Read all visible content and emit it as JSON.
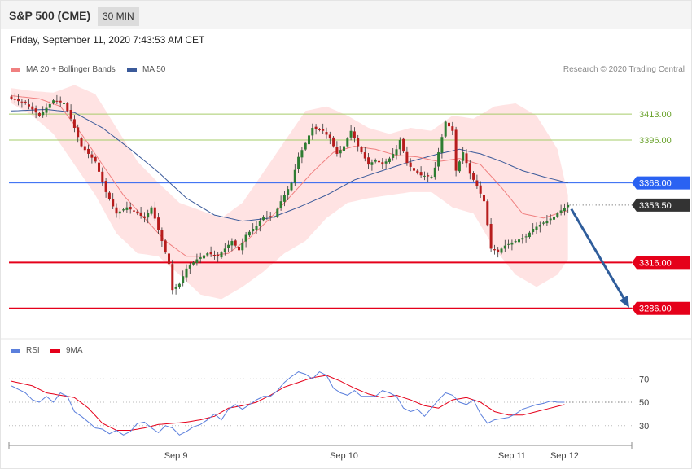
{
  "header": {
    "title": "S&P 500 (CME)",
    "timeframe": "30 MIN",
    "timestamp": "Friday, September 11, 2020 7:43:53 AM CET"
  },
  "legend": {
    "ma20": "MA 20 + Bollinger Bands",
    "ma50": "MA 50",
    "credit": "Research © 2020 Trading Central"
  },
  "rsi_legend": {
    "rsi": "RSI",
    "ma9": "9MA"
  },
  "colors": {
    "up": "#2e7d32",
    "down": "#b71c1c",
    "band": "#ffe3e3",
    "ma20": "#f08080",
    "ma50": "#3b5a9a",
    "resistance": "#a6cc6a",
    "level_blue": "#2a62f2",
    "support": "#e5001a",
    "arrow": "#2f5d9b",
    "rsi": "#5b7fdc",
    "rsi_ma": "#e5001a"
  },
  "chart_data": [
    {
      "type": "candlestick",
      "ylim": [
        3272,
        3437
      ],
      "x_ticks": [
        {
          "label": "Sep 9",
          "index": 47
        },
        {
          "label": "Sep 10",
          "index": 95
        },
        {
          "label": "Sep 11",
          "index": 143
        },
        {
          "label": "Sep 12",
          "index": 158
        }
      ],
      "levels": [
        {
          "value": 3413.0,
          "label": "3413.00",
          "style": "resistance"
        },
        {
          "value": 3396.0,
          "label": "3396.00",
          "style": "resistance"
        },
        {
          "value": 3368.0,
          "label": "3368.00",
          "style": "level_blue"
        },
        {
          "value": 3353.5,
          "label": "3353.50",
          "style": "current"
        },
        {
          "value": 3316.0,
          "label": "3316.00",
          "style": "support"
        },
        {
          "value": 3286.0,
          "label": "3286.00",
          "style": "support"
        }
      ],
      "close_anchors": [
        [
          0,
          3423
        ],
        [
          4,
          3420
        ],
        [
          8,
          3412
        ],
        [
          12,
          3422
        ],
        [
          15,
          3420
        ],
        [
          17,
          3410
        ],
        [
          20,
          3392
        ],
        [
          24,
          3382
        ],
        [
          27,
          3362
        ],
        [
          30,
          3348
        ],
        [
          33,
          3352
        ],
        [
          36,
          3348
        ],
        [
          38,
          3345
        ],
        [
          40,
          3352
        ],
        [
          43,
          3330
        ],
        [
          45,
          3315
        ],
        [
          46,
          3298
        ],
        [
          48,
          3302
        ],
        [
          50,
          3312
        ],
        [
          53,
          3318
        ],
        [
          56,
          3322
        ],
        [
          59,
          3320
        ],
        [
          61,
          3325
        ],
        [
          63,
          3330
        ],
        [
          65,
          3324
        ],
        [
          67,
          3334
        ],
        [
          70,
          3340
        ],
        [
          72,
          3346
        ],
        [
          75,
          3346
        ],
        [
          77,
          3356
        ],
        [
          80,
          3368
        ],
        [
          82,
          3385
        ],
        [
          84,
          3394
        ],
        [
          86,
          3404
        ],
        [
          89,
          3402
        ],
        [
          91,
          3397
        ],
        [
          93,
          3387
        ],
        [
          95,
          3392
        ],
        [
          97,
          3402
        ],
        [
          99,
          3392
        ],
        [
          102,
          3380
        ],
        [
          104,
          3383
        ],
        [
          106,
          3380
        ],
        [
          108,
          3384
        ],
        [
          110,
          3390
        ],
        [
          111,
          3396
        ],
        [
          113,
          3381
        ],
        [
          115,
          3376
        ],
        [
          117,
          3373
        ],
        [
          120,
          3372
        ],
        [
          121,
          3378
        ],
        [
          123,
          3398
        ],
        [
          124,
          3408
        ],
        [
          126,
          3402
        ],
        [
          127,
          3376
        ],
        [
          129,
          3388
        ],
        [
          131,
          3374
        ],
        [
          133,
          3366
        ],
        [
          135,
          3356
        ],
        [
          137,
          3325
        ],
        [
          139,
          3323
        ],
        [
          141,
          3327
        ],
        [
          144,
          3330
        ],
        [
          147,
          3333
        ],
        [
          149,
          3338
        ],
        [
          152,
          3342
        ],
        [
          155,
          3346
        ],
        [
          157,
          3350
        ],
        [
          159,
          3353.5
        ]
      ],
      "bollinger": {
        "upper": [
          [
            0,
            3430
          ],
          [
            6,
            3428
          ],
          [
            12,
            3427
          ],
          [
            18,
            3432
          ],
          [
            24,
            3426
          ],
          [
            30,
            3404
          ],
          [
            36,
            3382
          ],
          [
            42,
            3368
          ],
          [
            48,
            3355
          ],
          [
            54,
            3350
          ],
          [
            60,
            3345
          ],
          [
            66,
            3355
          ],
          [
            72,
            3375
          ],
          [
            78,
            3395
          ],
          [
            84,
            3415
          ],
          [
            90,
            3418
          ],
          [
            96,
            3412
          ],
          [
            102,
            3404
          ],
          [
            108,
            3400
          ],
          [
            114,
            3404
          ],
          [
            120,
            3402
          ],
          [
            126,
            3412
          ],
          [
            132,
            3410
          ],
          [
            138,
            3418
          ],
          [
            144,
            3420
          ],
          [
            150,
            3412
          ],
          [
            156,
            3390
          ],
          [
            159,
            3360
          ]
        ],
        "lower": [
          [
            0,
            3420
          ],
          [
            6,
            3412
          ],
          [
            12,
            3400
          ],
          [
            18,
            3380
          ],
          [
            24,
            3360
          ],
          [
            30,
            3335
          ],
          [
            36,
            3322
          ],
          [
            42,
            3320
          ],
          [
            48,
            3308
          ],
          [
            54,
            3295
          ],
          [
            60,
            3292
          ],
          [
            66,
            3300
          ],
          [
            72,
            3310
          ],
          [
            78,
            3322
          ],
          [
            84,
            3330
          ],
          [
            90,
            3345
          ],
          [
            96,
            3355
          ],
          [
            102,
            3358
          ],
          [
            108,
            3360
          ],
          [
            114,
            3362
          ],
          [
            120,
            3362
          ],
          [
            126,
            3352
          ],
          [
            132,
            3348
          ],
          [
            138,
            3325
          ],
          [
            144,
            3308
          ],
          [
            150,
            3300
          ],
          [
            156,
            3308
          ],
          [
            159,
            3318
          ]
        ]
      },
      "ma20": [
        [
          0,
          3425
        ],
        [
          8,
          3423
        ],
        [
          14,
          3418
        ],
        [
          20,
          3400
        ],
        [
          26,
          3380
        ],
        [
          32,
          3360
        ],
        [
          38,
          3345
        ],
        [
          44,
          3330
        ],
        [
          50,
          3320
        ],
        [
          56,
          3320
        ],
        [
          62,
          3322
        ],
        [
          68,
          3332
        ],
        [
          74,
          3345
        ],
        [
          80,
          3360
        ],
        [
          86,
          3375
        ],
        [
          92,
          3388
        ],
        [
          98,
          3392
        ],
        [
          104,
          3390
        ],
        [
          110,
          3386
        ],
        [
          116,
          3385
        ],
        [
          122,
          3382
        ],
        [
          128,
          3384
        ],
        [
          134,
          3380
        ],
        [
          140,
          3365
        ],
        [
          146,
          3348
        ],
        [
          152,
          3345
        ],
        [
          156,
          3348
        ],
        [
          159,
          3350
        ]
      ],
      "ma50": [
        [
          0,
          3415
        ],
        [
          10,
          3416
        ],
        [
          18,
          3414
        ],
        [
          26,
          3404
        ],
        [
          34,
          3390
        ],
        [
          42,
          3375
        ],
        [
          50,
          3358
        ],
        [
          58,
          3347
        ],
        [
          66,
          3343
        ],
        [
          74,
          3345
        ],
        [
          82,
          3352
        ],
        [
          90,
          3360
        ],
        [
          98,
          3370
        ],
        [
          106,
          3376
        ],
        [
          114,
          3382
        ],
        [
          122,
          3387
        ],
        [
          128,
          3390
        ],
        [
          134,
          3387
        ],
        [
          140,
          3382
        ],
        [
          146,
          3376
        ],
        [
          152,
          3372
        ],
        [
          159,
          3368
        ]
      ],
      "projection": {
        "from_index": 159,
        "from_value": 3351,
        "to_value": 3287
      }
    },
    {
      "type": "line",
      "ylim": [
        18,
        82
      ],
      "y_ticks": [
        70,
        50,
        30
      ],
      "series": [
        {
          "name": "RSI",
          "anchors": [
            [
              0,
              64
            ],
            [
              4,
              58
            ],
            [
              6,
              52
            ],
            [
              8,
              50
            ],
            [
              10,
              55
            ],
            [
              12,
              50
            ],
            [
              14,
              58
            ],
            [
              16,
              55
            ],
            [
              18,
              42
            ],
            [
              20,
              38
            ],
            [
              22,
              33
            ],
            [
              24,
              28
            ],
            [
              26,
              27
            ],
            [
              28,
              23
            ],
            [
              30,
              26
            ],
            [
              32,
              22
            ],
            [
              34,
              25
            ],
            [
              36,
              32
            ],
            [
              38,
              33
            ],
            [
              40,
              28
            ],
            [
              42,
              24
            ],
            [
              44,
              30
            ],
            [
              46,
              28
            ],
            [
              48,
              22
            ],
            [
              50,
              25
            ],
            [
              52,
              29
            ],
            [
              54,
              31
            ],
            [
              56,
              35
            ],
            [
              58,
              40
            ],
            [
              60,
              35
            ],
            [
              62,
              44
            ],
            [
              64,
              48
            ],
            [
              66,
              44
            ],
            [
              68,
              48
            ],
            [
              70,
              52
            ],
            [
              72,
              55
            ],
            [
              74,
              55
            ],
            [
              76,
              60
            ],
            [
              78,
              67
            ],
            [
              80,
              72
            ],
            [
              82,
              76
            ],
            [
              84,
              74
            ],
            [
              86,
              70
            ],
            [
              88,
              76
            ],
            [
              90,
              73
            ],
            [
              92,
              62
            ],
            [
              94,
              58
            ],
            [
              96,
              56
            ],
            [
              98,
              60
            ],
            [
              100,
              55
            ],
            [
              102,
              55
            ],
            [
              104,
              55
            ],
            [
              106,
              60
            ],
            [
              108,
              58
            ],
            [
              110,
              55
            ],
            [
              112,
              45
            ],
            [
              114,
              42
            ],
            [
              116,
              44
            ],
            [
              118,
              38
            ],
            [
              120,
              45
            ],
            [
              122,
              52
            ],
            [
              124,
              58
            ],
            [
              126,
              56
            ],
            [
              128,
              50
            ],
            [
              130,
              48
            ],
            [
              132,
              52
            ],
            [
              134,
              40
            ],
            [
              136,
              32
            ],
            [
              138,
              35
            ],
            [
              140,
              36
            ],
            [
              142,
              37
            ],
            [
              144,
              40
            ],
            [
              146,
              44
            ],
            [
              148,
              46
            ],
            [
              150,
              48
            ],
            [
              152,
              49
            ],
            [
              154,
              51
            ],
            [
              156,
              50
            ],
            [
              158,
              50
            ]
          ]
        },
        {
          "name": "9MA",
          "anchors": [
            [
              0,
              68
            ],
            [
              6,
              64
            ],
            [
              10,
              58
            ],
            [
              14,
              56
            ],
            [
              18,
              54
            ],
            [
              22,
              45
            ],
            [
              26,
              32
            ],
            [
              30,
              26
            ],
            [
              34,
              26
            ],
            [
              38,
              28
            ],
            [
              42,
              31
            ],
            [
              46,
              32
            ],
            [
              50,
              33
            ],
            [
              54,
              35
            ],
            [
              58,
              38
            ],
            [
              62,
              45
            ],
            [
              66,
              47
            ],
            [
              70,
              50
            ],
            [
              74,
              56
            ],
            [
              78,
              63
            ],
            [
              82,
              67
            ],
            [
              86,
              71
            ],
            [
              90,
              73
            ],
            [
              94,
              68
            ],
            [
              98,
              62
            ],
            [
              102,
              57
            ],
            [
              106,
              54
            ],
            [
              110,
              56
            ],
            [
              114,
              52
            ],
            [
              118,
              47
            ],
            [
              122,
              45
            ],
            [
              126,
              52
            ],
            [
              130,
              54
            ],
            [
              134,
              50
            ],
            [
              138,
              42
            ],
            [
              142,
              39
            ],
            [
              146,
              39
            ],
            [
              150,
              42
            ],
            [
              154,
              45
            ],
            [
              158,
              48
            ]
          ]
        }
      ]
    }
  ]
}
